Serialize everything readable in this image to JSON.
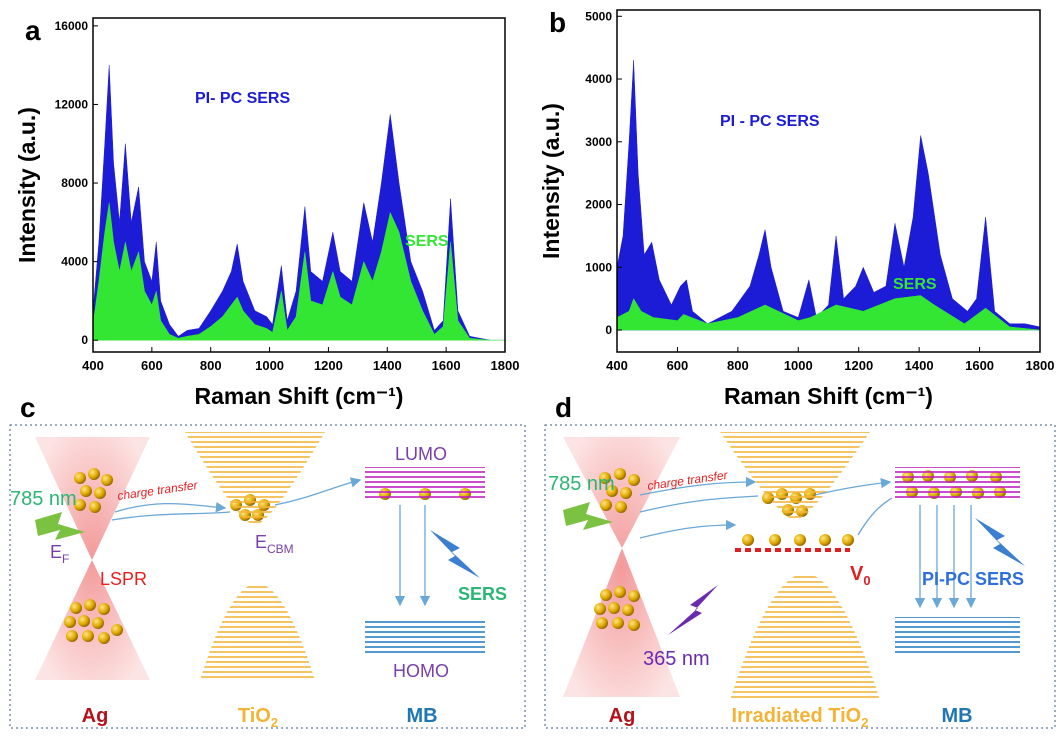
{
  "chart_data": [
    {
      "type": "area",
      "label": "a",
      "x_label": "Raman Shift (cm⁻¹)",
      "y_label": "Intensity (a.u.)",
      "xlim": [
        400,
        1800
      ],
      "ylim": [
        -600,
        16400
      ],
      "xticks": [
        400,
        600,
        800,
        1000,
        1200,
        1400,
        1600,
        1800
      ],
      "yticks": [
        0,
        4000,
        8000,
        12000,
        16000
      ],
      "annotations": [
        {
          "text": "PI- PC SERS",
          "color": "#1c1cd6"
        },
        {
          "text": "SERS",
          "color": "#33e633"
        }
      ],
      "series": [
        {
          "color": "#1c1cd6",
          "x": [
            400,
            420,
            440,
            455,
            470,
            490,
            510,
            530,
            555,
            575,
            600,
            615,
            630,
            660,
            690,
            720,
            760,
            800,
            840,
            870,
            890,
            910,
            950,
            990,
            1010,
            1040,
            1060,
            1090,
            1120,
            1140,
            1180,
            1215,
            1240,
            1280,
            1320,
            1350,
            1380,
            1410,
            1440,
            1480,
            1520,
            1560,
            1590,
            1615,
            1640,
            1680,
            1750,
            1800
          ],
          "values": [
            1500,
            5000,
            10000,
            14000,
            9000,
            6000,
            10000,
            6000,
            7800,
            4000,
            3000,
            5000,
            2000,
            800,
            200,
            500,
            600,
            1500,
            2500,
            3500,
            4900,
            3000,
            1500,
            1200,
            800,
            3800,
            1000,
            2500,
            6800,
            3500,
            3000,
            5500,
            3500,
            3000,
            7000,
            5000,
            8000,
            11500,
            8000,
            4000,
            2500,
            500,
            1000,
            7200,
            1500,
            200,
            0,
            0
          ]
        },
        {
          "color": "#33e633",
          "x": [
            400,
            420,
            440,
            455,
            470,
            490,
            510,
            530,
            555,
            575,
            600,
            615,
            630,
            660,
            690,
            720,
            760,
            800,
            840,
            870,
            890,
            910,
            950,
            990,
            1010,
            1040,
            1060,
            1090,
            1120,
            1140,
            1180,
            1215,
            1240,
            1280,
            1320,
            1350,
            1380,
            1410,
            1440,
            1480,
            1520,
            1560,
            1590,
            1615,
            1640,
            1680,
            1750,
            1800
          ],
          "values": [
            800,
            3000,
            5500,
            7000,
            5000,
            3500,
            5000,
            3500,
            4500,
            2500,
            1800,
            2500,
            1000,
            300,
            100,
            200,
            300,
            700,
            1200,
            1800,
            2200,
            1500,
            800,
            600,
            400,
            2500,
            500,
            1200,
            4500,
            2000,
            1800,
            3500,
            2200,
            1800,
            4000,
            3000,
            4500,
            6500,
            5500,
            3000,
            1500,
            300,
            700,
            5000,
            1000,
            100,
            0,
            0
          ]
        }
      ]
    },
    {
      "type": "area",
      "label": "b",
      "x_label": "Raman Shift (cm⁻¹)",
      "y_label": "Intensity (a.u.)",
      "xlim": [
        400,
        1800
      ],
      "ylim": [
        -350,
        5100
      ],
      "xticks": [
        400,
        600,
        800,
        1000,
        1200,
        1400,
        1600,
        1800
      ],
      "yticks": [
        0,
        1000,
        2000,
        3000,
        4000,
        5000
      ],
      "annotations": [
        {
          "text": "PI - PC SERS",
          "color": "#1c1cd6"
        },
        {
          "text": "SERS",
          "color": "#33e633"
        }
      ],
      "series": [
        {
          "color": "#1c1cd6",
          "x": [
            400,
            420,
            440,
            455,
            470,
            490,
            515,
            540,
            580,
            610,
            630,
            650,
            700,
            740,
            780,
            840,
            870,
            890,
            910,
            950,
            1000,
            1035,
            1060,
            1100,
            1125,
            1150,
            1190,
            1215,
            1250,
            1290,
            1320,
            1350,
            1380,
            1405,
            1430,
            1470,
            1510,
            1560,
            1590,
            1620,
            1650,
            1700,
            1750,
            1800
          ],
          "values": [
            1000,
            1500,
            3000,
            4300,
            2500,
            1200,
            1400,
            800,
            400,
            700,
            800,
            300,
            100,
            200,
            300,
            700,
            1200,
            1600,
            1000,
            300,
            200,
            800,
            200,
            400,
            1500,
            500,
            700,
            1000,
            600,
            700,
            1700,
            1000,
            1800,
            3100,
            2500,
            1200,
            500,
            300,
            500,
            1800,
            300,
            100,
            100,
            50
          ]
        },
        {
          "color": "#33e633",
          "x": [
            400,
            440,
            455,
            480,
            520,
            600,
            620,
            700,
            800,
            890,
            1000,
            1040,
            1125,
            1215,
            1320,
            1405,
            1450,
            1550,
            1620,
            1700,
            1800
          ],
          "values": [
            200,
            300,
            500,
            300,
            200,
            150,
            250,
            100,
            200,
            400,
            150,
            200,
            400,
            300,
            500,
            550,
            400,
            100,
            350,
            50,
            0
          ]
        }
      ]
    }
  ],
  "diagrams": [
    {
      "label": "c",
      "laser": "785 nm",
      "transfer": "charge transfer",
      "ef": {
        "text": "E",
        "sub": "F"
      },
      "lspr": "LSPR",
      "ecbm": {
        "text": "E",
        "sub": "CBM"
      },
      "lumo": "LUMO",
      "homo": "HOMO",
      "sers": "SERS",
      "ag": "Ag",
      "tio2": {
        "text": "TiO",
        "sub": "2"
      },
      "mb": "MB"
    },
    {
      "label": "d",
      "laser": "785 nm",
      "transfer": "charge transfer",
      "v0": {
        "text": "V",
        "sub": "0"
      },
      "uv": "365 nm",
      "sers": "PI-PC SERS",
      "ag": "Ag",
      "tio2": {
        "text": "Irradiated TiO",
        "sub": "2"
      },
      "mb": "MB"
    }
  ]
}
